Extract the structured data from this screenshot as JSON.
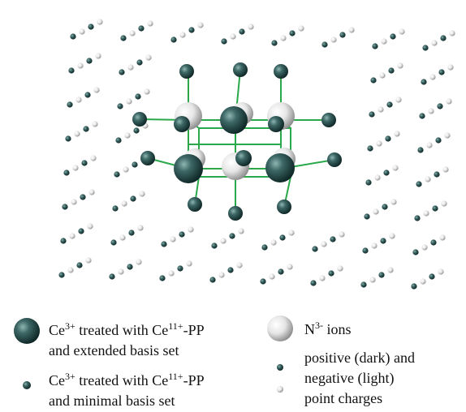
{
  "legend": [
    {
      "lines": [
        [
          "Ce",
          "3+",
          " treated with Ce",
          "11+",
          "-PP"
        ],
        [
          "and extended basis set"
        ]
      ]
    },
    {
      "lines": [
        [
          "Ce",
          "3+",
          " treated with Ce",
          "11+",
          "-PP"
        ],
        [
          "and minimal basis set"
        ]
      ]
    },
    {
      "lines": [
        [
          "N",
          "3-",
          " ions"
        ]
      ]
    },
    {
      "lines": [
        [
          "positive (dark) and"
        ],
        [
          "negative (light)"
        ],
        [
          "point charges"
        ]
      ]
    }
  ]
}
